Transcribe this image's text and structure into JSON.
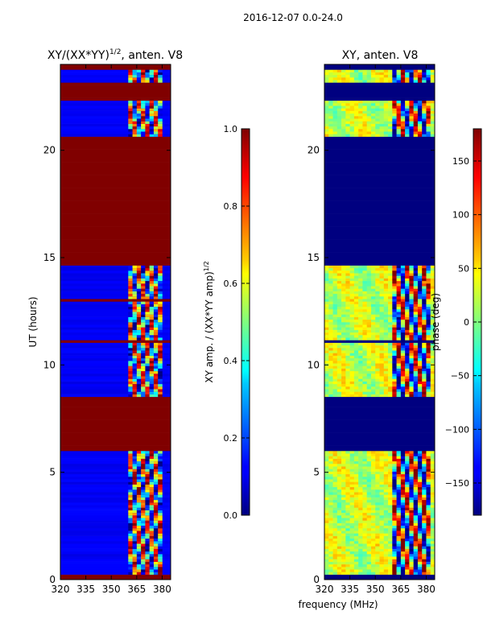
{
  "suptitle": "2016-12-07 0.0-24.0",
  "chart_data": [
    {
      "type": "heatmap",
      "title_base": "XY/(XX*YY)",
      "title_exp": "1/2",
      "title_suffix": ", anten. V8",
      "ylabel": "UT (hours)",
      "xlabel": "",
      "xlim": [
        320,
        385
      ],
      "ylim": [
        0,
        24
      ],
      "xticks": [
        320,
        335,
        350,
        365,
        380
      ],
      "yticks": [
        0,
        5,
        10,
        15,
        20
      ],
      "colorbar": {
        "label_base": "XY amp. / (XX*YY amp)",
        "label_exp": "1/2",
        "range": [
          0.0,
          1.0
        ],
        "ticks": [
          "0.0",
          "0.2",
          "0.4",
          "0.6",
          "0.8",
          "1.0"
        ],
        "tick_values": [
          0.0,
          0.2,
          0.4,
          0.6,
          0.8,
          1.0
        ]
      },
      "flagged_bands_hours": [
        [
          0.0,
          0.3
        ],
        [
          6.0,
          8.5
        ],
        [
          11.0,
          11.1
        ],
        [
          13.0,
          13.1
        ],
        [
          14.6,
          20.6
        ],
        [
          21.3,
          21.4
        ],
        [
          22.3,
          23.2
        ],
        [
          23.8,
          24.0
        ]
      ],
      "active_band_mhz": [
        360,
        380
      ],
      "notes": "Flagged times saturate at 1.0; unflagged data mostly near 0.0 with fringes 0.3-0.8 in 360-380 MHz"
    },
    {
      "type": "heatmap",
      "title": "XY, anten. V8",
      "ylabel": "",
      "xlabel": "frequency (MHz)",
      "xlim": [
        320,
        385
      ],
      "ylim": [
        0,
        24
      ],
      "xticks": [
        320,
        335,
        350,
        365,
        380
      ],
      "yticks": [
        0,
        5,
        10,
        15,
        20
      ],
      "colorbar": {
        "label": "phase (deg)",
        "range": [
          -180,
          180
        ],
        "ticks": [
          "150",
          "100",
          "50",
          "0",
          "−50",
          "−100",
          "−150"
        ],
        "tick_values": [
          150,
          100,
          50,
          0,
          -50,
          -100,
          -150
        ]
      },
      "flagged_bands_hours": [
        [
          0.0,
          0.3
        ],
        [
          6.0,
          8.5
        ],
        [
          11.0,
          11.1
        ],
        [
          14.6,
          20.6
        ],
        [
          21.3,
          21.4
        ],
        [
          22.3,
          23.2
        ],
        [
          23.8,
          24.0
        ]
      ],
      "notes": "Flagged times show phase -180 (dark blue); data regions mostly 0 to +60 deg with -180..180 wrapping near 360-380 MHz"
    }
  ]
}
